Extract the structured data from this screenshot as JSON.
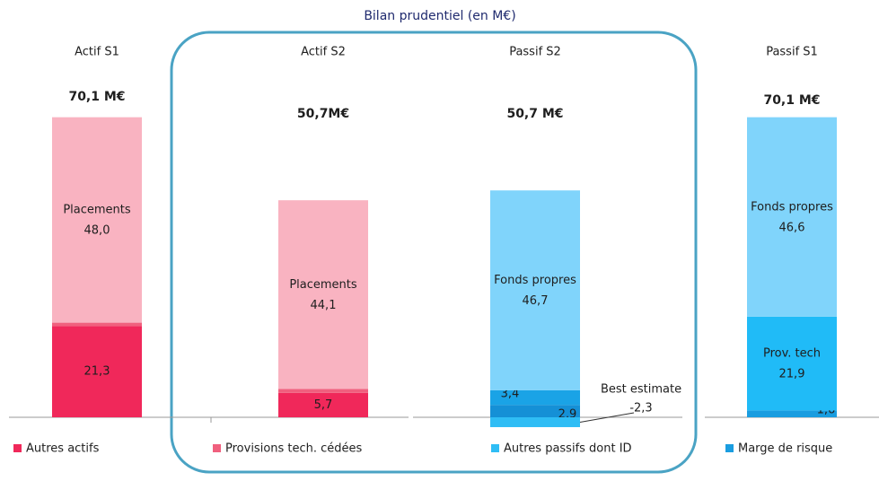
{
  "chart_data": {
    "type": "stacked-bar",
    "title": "Bilan prudentiel (en M€)",
    "bars": [
      {
        "category": "Actif  S1",
        "total_label": "70,1 M€",
        "segments": [
          {
            "value": 21.3,
            "value_label": "21,3",
            "color": "#f0285a"
          },
          {
            "value": 0.8,
            "color": "#f0607e"
          },
          {
            "name": "Placements",
            "value": 48.0,
            "value_label": "48,0",
            "color": "#f9b3c1"
          }
        ]
      },
      {
        "category": "Actif  S2",
        "total_label": "50,7M€",
        "segments": [
          {
            "value": 5.7,
            "value_label": "5,7",
            "color": "#f0285a"
          },
          {
            "value": 0.9,
            "color": "#f0607e"
          },
          {
            "name": "Placements",
            "value": 44.1,
            "value_label": "44,1",
            "color": "#f9b3c1"
          }
        ]
      },
      {
        "category": "Passif S2",
        "total_label": "50,7 M€",
        "segments": [
          {
            "value": 2.9,
            "value_label": "2,9",
            "color": "#1590d6"
          },
          {
            "value": 3.4,
            "value_label": "3,4",
            "color": "#1aa3e6"
          },
          {
            "name": "Fonds propres",
            "value": 46.7,
            "value_label": "46,7",
            "color": "#80d4fb"
          },
          {
            "name": "Best estimate",
            "value": -2.3,
            "value_label": "-2,3",
            "color": "#2fbdf5"
          }
        ]
      },
      {
        "category": "Passif S1",
        "total_label": "70,1  M€",
        "segments": [
          {
            "value": 1.6,
            "value_label": "1,6",
            "color": "#1a9de0"
          },
          {
            "name": "Prov. tech",
            "value": 21.9,
            "value_label": "21,9",
            "color": "#20bbf7"
          },
          {
            "name": "Fonds propres",
            "value": 46.6,
            "value_label": "46,6",
            "color": "#80d4fb"
          }
        ]
      }
    ],
    "legend": [
      {
        "name": "Autres actifs",
        "color": "#f0285a"
      },
      {
        "name": "Provisions tech. cédées",
        "color": "#f0607e"
      },
      {
        "name": "Autres passifs dont ID",
        "color": "#2fbdf5"
      },
      {
        "name": "Marge de risque",
        "color": "#1a9de0"
      }
    ]
  }
}
